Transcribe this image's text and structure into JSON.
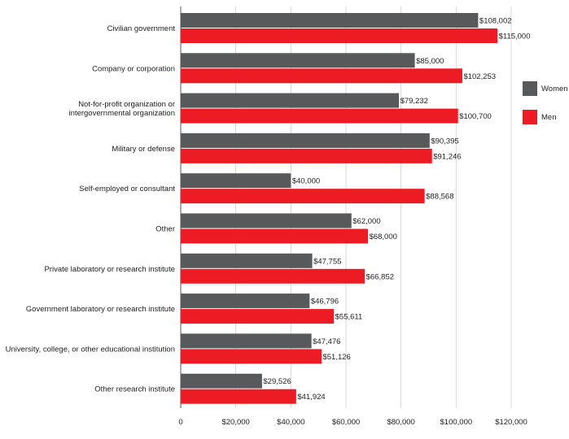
{
  "chart_data": {
    "type": "bar",
    "orientation": "horizontal",
    "categories": [
      [
        "Civilian government"
      ],
      [
        "Company or corporation"
      ],
      [
        "Not-for-profit organization or",
        "intergovernmental organization"
      ],
      [
        "Military or defense"
      ],
      [
        "Self-employed or consultant"
      ],
      [
        "Other"
      ],
      [
        "Private laboratory or research institute"
      ],
      [
        "Government laboratory or research institute"
      ],
      [
        "University, college, or other educational institution"
      ],
      [
        "Other research institute"
      ]
    ],
    "series": [
      {
        "name": "Women",
        "color": "#58595b",
        "values": [
          108002,
          85000,
          79232,
          90395,
          40000,
          62000,
          47755,
          46796,
          47476,
          29526
        ],
        "labels": [
          "$108,002",
          "$85,000",
          "$79,232",
          "$90,395",
          "$40,000",
          "$62,000",
          "$47,755",
          "$46,796",
          "$47,476",
          "$29,526"
        ]
      },
      {
        "name": "Men",
        "color": "#ed1c24",
        "values": [
          115000,
          102253,
          100700,
          91246,
          88568,
          68000,
          66852,
          55611,
          51126,
          41924
        ],
        "labels": [
          "$115,000",
          "$102,253",
          "$100,700",
          "$91,246",
          "$88,568",
          "$68,000",
          "$66,852",
          "$55,611",
          "$51,126",
          "$41,924"
        ]
      }
    ],
    "xlim": [
      0,
      120000
    ],
    "ticks": [
      0,
      20000,
      40000,
      60000,
      80000,
      100000,
      120000
    ],
    "tick_labels": [
      "0",
      "$20,000",
      "$40,000",
      "$60,000",
      "$80,000",
      "$100,000",
      "$120,000"
    ],
    "grid": true,
    "legend_position": "right",
    "title": "",
    "xlabel": "",
    "ylabel": ""
  }
}
